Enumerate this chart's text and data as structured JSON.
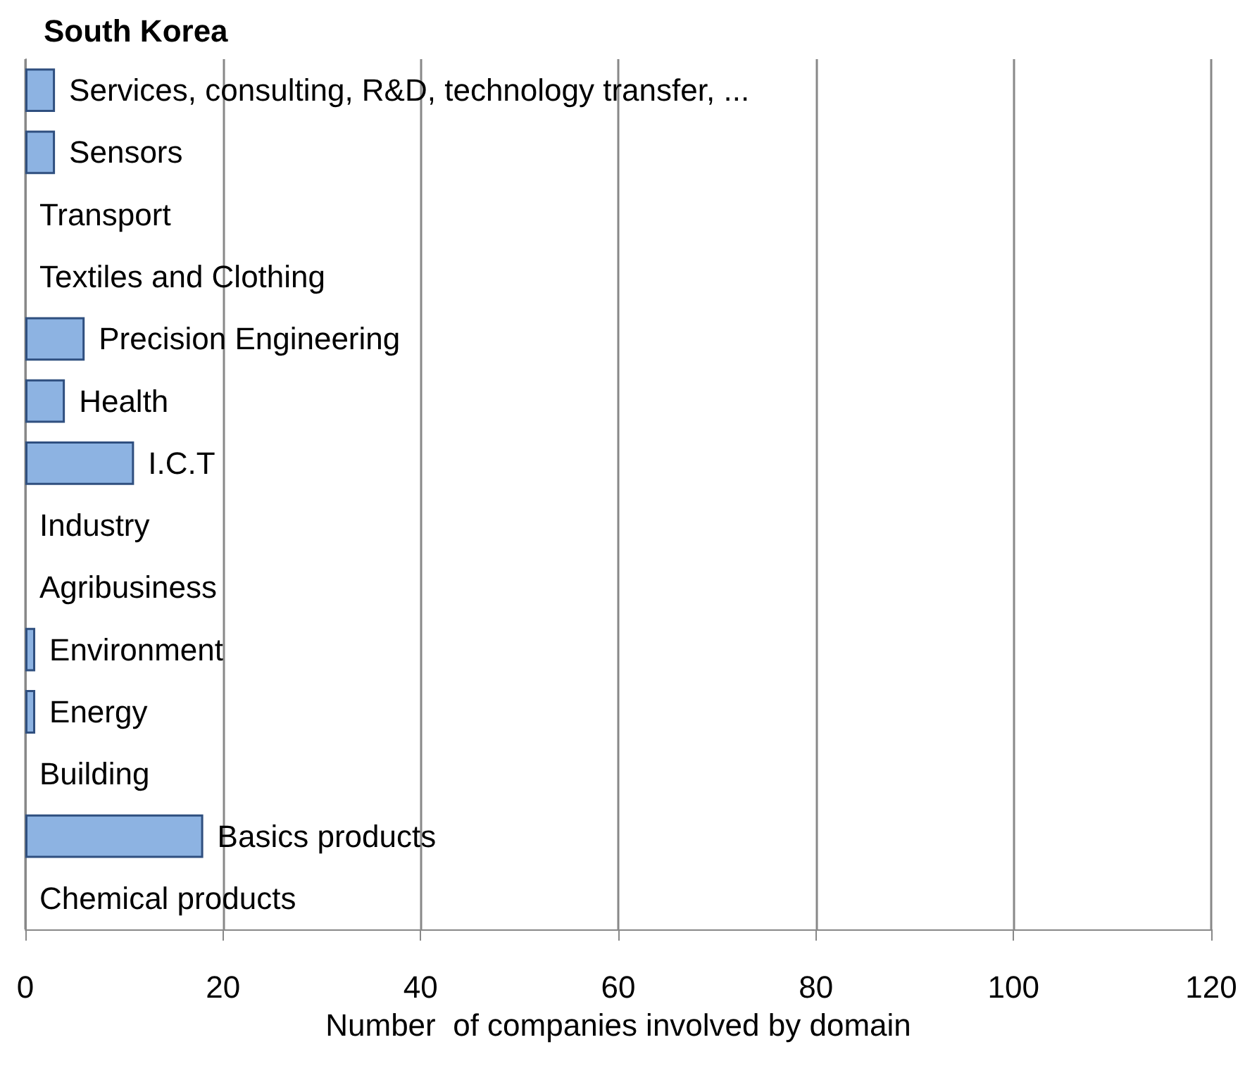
{
  "chart_data": {
    "type": "bar",
    "orientation": "horizontal",
    "title": "South Korea",
    "xlabel": "Number  of companies involved by domain",
    "categories": [
      "Services, consulting, R&D, technology transfer, ...",
      "Sensors",
      "Transport",
      "Textiles and Clothing",
      "Precision Engineering",
      "Health",
      "I.C.T",
      "Industry",
      "Agribusiness",
      "Environment",
      "Energy",
      "Building",
      "Basics products",
      "Chemical products"
    ],
    "values": [
      3,
      3,
      0,
      0,
      6,
      4,
      11,
      0,
      0,
      1,
      1,
      0,
      18,
      0
    ],
    "color": "#8db3e2",
    "xlim": [
      0,
      120
    ],
    "xticks": [
      0,
      20,
      40,
      60,
      80,
      100,
      120
    ],
    "grid": "x",
    "tick_labels": "x"
  }
}
